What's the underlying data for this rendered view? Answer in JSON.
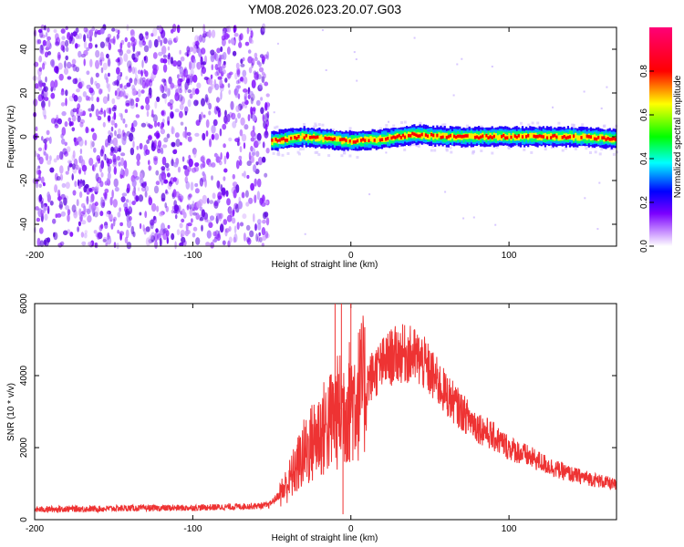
{
  "title": "YM08.2026.023.20.07.G03",
  "chart_data": [
    {
      "type": "heatmap",
      "xlabel": "Height of straight line (km)",
      "ylabel": "Frequency (Hz)",
      "xlim": [
        -200,
        168
      ],
      "ylim": [
        -50,
        50
      ],
      "x_ticks": [
        -200,
        -100,
        0,
        100
      ],
      "y_ticks": [
        -40,
        -20,
        0,
        20,
        40
      ],
      "colorbar": {
        "label": "Normalized spectral amplitude",
        "range": [
          0,
          1
        ],
        "ticks": [
          0.0,
          0.2,
          0.4,
          0.6,
          0.8
        ],
        "colormap": [
          "#ffffff",
          "#7a00ff",
          "#0000ff",
          "#00ffff",
          "#00ff00",
          "#ffff00",
          "#ff0000",
          "#ff00aa"
        ]
      },
      "features": {
        "noise_region_km": [
          -200,
          -52
        ],
        "noise_amplitude": 0.15,
        "signal_band": {
          "x_range_km": [
            -50,
            168
          ],
          "center_freq_hz": 0,
          "points": [
            {
              "x": -50,
              "f": -2
            },
            {
              "x": -30,
              "f": 0
            },
            {
              "x": 0,
              "f": -2
            },
            {
              "x": 20,
              "f": -1
            },
            {
              "x": 40,
              "f": 1
            },
            {
              "x": 60,
              "f": 0
            },
            {
              "x": 100,
              "f": 0
            },
            {
              "x": 140,
              "f": 0
            },
            {
              "x": 168,
              "f": -1
            }
          ],
          "peak_amplitude": 0.85
        }
      }
    },
    {
      "type": "line",
      "xlabel": "Height of straight line (km)",
      "ylabel": "SNR (10 * v/v)",
      "xlim": [
        -200,
        168
      ],
      "ylim": [
        0,
        6000
      ],
      "x_ticks": [
        -200,
        -100,
        0,
        100
      ],
      "y_ticks": [
        0,
        2000,
        4000,
        6000
      ],
      "series": [
        {
          "color": "#ee3333",
          "points": [
            [
              -200,
              280
            ],
            [
              -180,
              300
            ],
            [
              -160,
              300
            ],
            [
              -140,
              320
            ],
            [
              -120,
              320
            ],
            [
              -100,
              330
            ],
            [
              -80,
              350
            ],
            [
              -60,
              380
            ],
            [
              -52,
              400
            ],
            [
              -45,
              700
            ],
            [
              -40,
              1000
            ],
            [
              -35,
              1400
            ],
            [
              -30,
              1800
            ],
            [
              -25,
              2100
            ],
            [
              -20,
              2400
            ],
            [
              -15,
              2600
            ],
            [
              -10,
              2900
            ],
            [
              -5,
              3100
            ],
            [
              0,
              3300
            ],
            [
              5,
              3500
            ],
            [
              10,
              3800
            ],
            [
              15,
              4100
            ],
            [
              20,
              4300
            ],
            [
              25,
              4500
            ],
            [
              30,
              4600
            ],
            [
              35,
              4600
            ],
            [
              40,
              4550
            ],
            [
              45,
              4400
            ],
            [
              50,
              4100
            ],
            [
              55,
              3800
            ],
            [
              60,
              3500
            ],
            [
              70,
              3000
            ],
            [
              80,
              2600
            ],
            [
              90,
              2300
            ],
            [
              100,
              2000
            ],
            [
              110,
              1800
            ],
            [
              120,
              1600
            ],
            [
              130,
              1400
            ],
            [
              140,
              1250
            ],
            [
              150,
              1150
            ],
            [
              160,
              1050
            ],
            [
              168,
              950
            ]
          ],
          "spikes": [
            {
              "x": -10,
              "y": 6000
            },
            {
              "x": -6,
              "y": 6000
            },
            {
              "x": 0,
              "y": 6000
            },
            {
              "x": -5,
              "y": 150
            }
          ]
        }
      ]
    }
  ]
}
